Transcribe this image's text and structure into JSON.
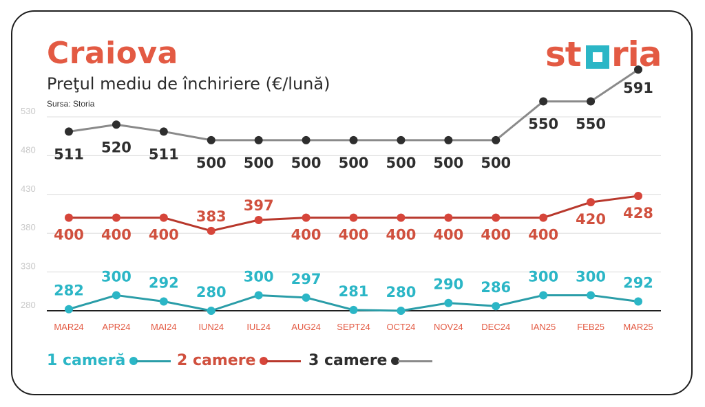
{
  "header": {
    "title": "Craiova",
    "subtitle": "Preţul mediu de închiriere (€/lună)",
    "source": "Sursa: Storia",
    "logo_text": "storia"
  },
  "colors": {
    "accent": "#e35a43",
    "series_1": "#2a9da8",
    "series_1_dot": "#2bb6c6",
    "series_2": "#b8382c",
    "series_2_dot": "#d6453a",
    "series_3": "#8a8a8a",
    "series_3_dot": "#2e2e2e",
    "label_1": "#2bb6c6",
    "label_2": "#d0503e",
    "label_3": "#2e2e2e"
  },
  "chart_data": {
    "type": "line",
    "title": "Preţul mediu de închiriere (€/lună)",
    "categories": [
      "MAR24",
      "APR24",
      "MAI24",
      "IUN24",
      "IUL24",
      "AUG24",
      "SEPT24",
      "OCT24",
      "NOV24",
      "DEC24",
      "IAN25",
      "FEB25",
      "MAR25"
    ],
    "yticks": [
      280,
      330,
      380,
      430,
      480,
      530
    ],
    "ylim": [
      280,
      530
    ],
    "grid": true,
    "legend_position": "bottom-left",
    "series": [
      {
        "name": "1 cameră",
        "values": [
          282,
          300,
          292,
          280,
          300,
          297,
          281,
          280,
          290,
          286,
          300,
          300,
          292
        ]
      },
      {
        "name": "2 camere",
        "values": [
          400,
          400,
          400,
          383,
          397,
          400,
          400,
          400,
          400,
          400,
          400,
          420,
          428
        ]
      },
      {
        "name": "3 camere",
        "values": [
          511,
          520,
          511,
          500,
          500,
          500,
          500,
          500,
          500,
          500,
          550,
          550,
          591
        ]
      }
    ]
  }
}
